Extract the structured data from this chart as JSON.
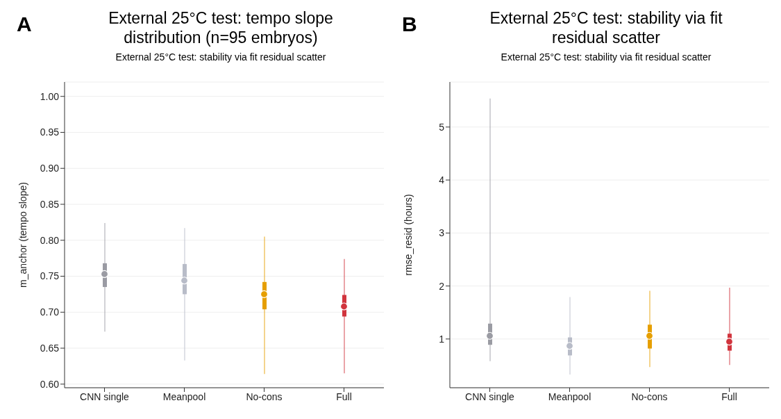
{
  "chart_data": [
    {
      "type": "box",
      "title": "External 25°C test: tempo slope distribution (n=95 embryos)",
      "subtitle": "External 25°C test: stability via fit residual scatter",
      "ylabel": "m_anchor (tempo slope)",
      "annotations": [
        "A"
      ],
      "categories": [
        "CNN single",
        "Meanpool",
        "No-cons",
        "Full"
      ],
      "colors": [
        "#9a9ba3",
        "#b8bcc8",
        "#e69f00",
        "#d1343d"
      ],
      "boxes": [
        {
          "low": 0.673,
          "q1": 0.735,
          "median": 0.753,
          "q3": 0.768,
          "high": 0.824
        },
        {
          "low": 0.633,
          "q1": 0.725,
          "median": 0.744,
          "q3": 0.767,
          "high": 0.817
        },
        {
          "low": 0.614,
          "q1": 0.704,
          "median": 0.725,
          "q3": 0.742,
          "high": 0.805
        },
        {
          "low": 0.615,
          "q1": 0.694,
          "median": 0.708,
          "q3": 0.724,
          "high": 0.774
        }
      ],
      "ylim": [
        0.595,
        1.02
      ],
      "yticks": [
        {
          "value": 0.6,
          "label": "0.60"
        },
        {
          "value": 0.65,
          "label": "0.65"
        },
        {
          "value": 0.7,
          "label": "0.70"
        },
        {
          "value": 0.75,
          "label": "0.75"
        },
        {
          "value": 0.8,
          "label": "0.80"
        },
        {
          "value": 0.85,
          "label": "0.85"
        },
        {
          "value": 0.9,
          "label": "0.90"
        },
        {
          "value": 0.95,
          "label": "0.95"
        },
        {
          "value": 1.0,
          "label": "1.00"
        }
      ],
      "grid": "y"
    },
    {
      "type": "box",
      "title": "External 25°C test: stability via fit residual scatter",
      "subtitle": "External 25°C test: stability via fit residual scatter",
      "ylabel": "rmse_resid (hours)",
      "annotations": [
        "B"
      ],
      "categories": [
        "CNN single",
        "Meanpool",
        "No-cons",
        "Full"
      ],
      "colors": [
        "#9a9ba3",
        "#b8bcc8",
        "#e69f00",
        "#d1343d"
      ],
      "boxes": [
        {
          "low": 0.58,
          "q1": 0.89,
          "median": 1.06,
          "q3": 1.29,
          "high": 5.54
        },
        {
          "low": 0.33,
          "q1": 0.69,
          "median": 0.87,
          "q3": 1.03,
          "high": 1.79
        },
        {
          "low": 0.47,
          "q1": 0.82,
          "median": 1.06,
          "q3": 1.27,
          "high": 1.91
        },
        {
          "low": 0.51,
          "q1": 0.78,
          "median": 0.95,
          "q3": 1.1,
          "high": 1.97
        }
      ],
      "ylim": [
        0.08,
        5.85
      ],
      "yticks": [
        1,
        2,
        3,
        4,
        5
      ],
      "grid": "y"
    }
  ]
}
